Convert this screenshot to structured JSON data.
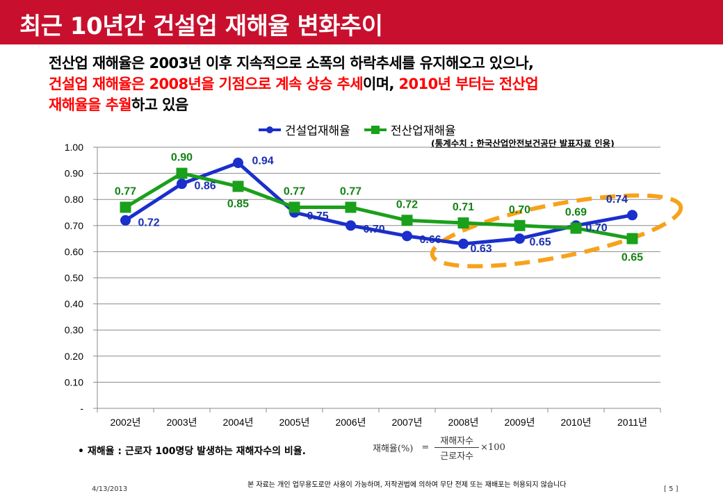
{
  "header": {
    "title": "최근 10년간 건설업 재해율 변화추이"
  },
  "summary": {
    "line1": "전산업 재해율은 2003년 이후 지속적으로 소폭의 하락추세를 유지해오고 있으나,",
    "line2_red_a": "건설업 재해율은 2008년을 기점으로 계속 상승 추세",
    "line2_black": "이며, ",
    "line2_red_b": "2010년 부터는 전산업",
    "line3_red": "재해율을 추월",
    "line3_black": "하고 있음"
  },
  "colors": {
    "title_bar": "#c8102e",
    "construction": "#1a2fcc",
    "all_industry": "#1aa01a",
    "construction_label": "#1a2fb0",
    "all_industry_label": "#138213",
    "highlight": "#f7a21b",
    "emphasis_red": "#ff0000"
  },
  "source_note": "(통계수치 : 한국산업안전보건공단  발표자료 인용)",
  "chart_data": {
    "type": "line",
    "title": "",
    "xlabel": "",
    "ylabel": "",
    "categories": [
      "2002년",
      "2003년",
      "2004년",
      "2005년",
      "2006년",
      "2007년",
      "2008년",
      "2009년",
      "2010년",
      "2011년"
    ],
    "series": [
      {
        "name": "건설업재해율",
        "marker": "circle",
        "color_key": "construction",
        "values": [
          0.72,
          0.86,
          0.94,
          0.75,
          0.7,
          0.66,
          0.63,
          0.65,
          0.7,
          0.74
        ],
        "labels": [
          "0.72",
          "0.86",
          "0.94",
          "0.75",
          "0.70",
          "0.66",
          "0.63",
          "0.65",
          "0.70",
          "0.74"
        ]
      },
      {
        "name": "전산업재해율",
        "marker": "square",
        "color_key": "all_industry",
        "values": [
          0.77,
          0.9,
          0.85,
          0.77,
          0.77,
          0.72,
          0.71,
          0.7,
          0.69,
          0.65
        ],
        "labels": [
          "0.77",
          "0.90",
          "0.85",
          "0.77",
          "0.77",
          "0.72",
          "0.71",
          "0.70",
          "0.69",
          "0.65"
        ]
      }
    ],
    "ylim": [
      0,
      1.0
    ],
    "yticks": [
      0,
      0.1,
      0.2,
      0.3,
      0.4,
      0.5,
      0.6,
      0.7,
      0.8,
      0.9,
      1.0
    ],
    "ytick_labels": [
      "-",
      "0.10",
      "0.20",
      "0.30",
      "0.40",
      "0.50",
      "0.60",
      "0.70",
      "0.80",
      "0.90",
      "1.00"
    ],
    "grid": true,
    "legend": "top-center",
    "annotation": "dashed orange ellipse highlighting 2008년–2011년"
  },
  "footnote": {
    "bullet": "•",
    "text": "재해율 : 근로자 100명당 발생하는 재해자수의 비율."
  },
  "formula": {
    "lhs": "재해율(%)",
    "equals": "=",
    "numerator": "재해자수",
    "denominator": "근로자수",
    "multiplier": "×100"
  },
  "footer": {
    "date": "4/13/2013",
    "notice": "본 자료는 개인 업무용도로만 사용이 가능하며, 저작권법에 의하여 무단 전제 또는 재배포는 허용되지 않습니다",
    "page": "[ 5 ]"
  }
}
